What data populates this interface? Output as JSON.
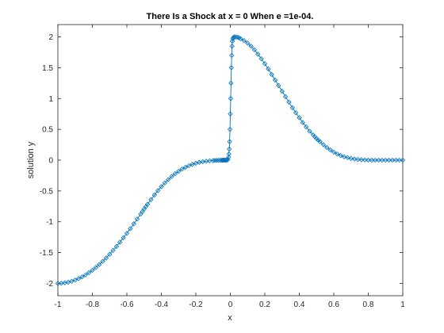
{
  "chart_data": {
    "type": "line",
    "title": "There Is a Shock at x = 0 When e =1e-04.",
    "xlabel": "x",
    "ylabel": "solution y",
    "xlim": [
      -1,
      1
    ],
    "ylim": [
      -2.2,
      2.2
    ],
    "xticks": [
      -1,
      -0.8,
      -0.6,
      -0.4,
      -0.2,
      0,
      0.2,
      0.4,
      0.6,
      0.8,
      1
    ],
    "xtick_labels": [
      "-1",
      "-0.8",
      "-0.6",
      "-0.4",
      "-0.2",
      "0",
      "0.2",
      "0.4",
      "0.6",
      "0.8",
      "1"
    ],
    "yticks": [
      -2,
      -1.5,
      -1,
      -0.5,
      0,
      0.5,
      1,
      1.5,
      2
    ],
    "ytick_labels": [
      "-2",
      "-1.5",
      "-1",
      "-0.5",
      "0",
      "0.5",
      "1",
      "1.5",
      "2"
    ],
    "grid": false,
    "legend": "none",
    "marker": "diamond",
    "line_color": "#0072BD",
    "series": [
      {
        "x": [
          -1.0,
          -0.98,
          -0.96,
          -0.94,
          -0.92,
          -0.9,
          -0.88,
          -0.86,
          -0.84,
          -0.82,
          -0.8,
          -0.78,
          -0.76,
          -0.74,
          -0.72,
          -0.7,
          -0.68,
          -0.66,
          -0.64,
          -0.62,
          -0.6,
          -0.58,
          -0.56,
          -0.54,
          -0.52,
          -0.51,
          -0.5,
          -0.49,
          -0.48,
          -0.46,
          -0.44,
          -0.42,
          -0.4,
          -0.38,
          -0.36,
          -0.34,
          -0.32,
          -0.3,
          -0.28,
          -0.26,
          -0.24,
          -0.22,
          -0.2,
          -0.18,
          -0.16,
          -0.14,
          -0.12,
          -0.1,
          -0.09,
          -0.08,
          -0.07,
          -0.06,
          -0.05,
          -0.045,
          -0.04,
          -0.035,
          -0.03,
          -0.025,
          -0.02,
          -0.015,
          -0.01,
          -0.008,
          -0.006,
          -0.004,
          -0.002,
          0.0,
          0.002,
          0.004,
          0.006,
          0.008,
          0.01,
          0.012,
          0.015,
          0.018,
          0.022,
          0.03,
          0.04,
          0.05,
          0.06,
          0.08,
          0.1,
          0.12,
          0.14,
          0.16,
          0.18,
          0.2,
          0.22,
          0.24,
          0.26,
          0.28,
          0.3,
          0.32,
          0.34,
          0.36,
          0.38,
          0.4,
          0.42,
          0.44,
          0.46,
          0.48,
          0.49,
          0.5,
          0.51,
          0.52,
          0.54,
          0.56,
          0.58,
          0.6,
          0.62,
          0.64,
          0.66,
          0.68,
          0.7,
          0.72,
          0.74,
          0.76,
          0.78,
          0.8,
          0.82,
          0.84,
          0.86,
          0.88,
          0.9,
          0.92,
          0.94,
          0.96,
          0.98,
          1.0
        ],
        "y": [
          -2.0,
          -1.998,
          -1.99,
          -1.98,
          -1.965,
          -1.946,
          -1.922,
          -1.894,
          -1.862,
          -1.826,
          -1.786,
          -1.742,
          -1.694,
          -1.642,
          -1.587,
          -1.528,
          -1.465,
          -1.4,
          -1.331,
          -1.26,
          -1.187,
          -1.111,
          -1.033,
          -0.955,
          -0.875,
          -0.835,
          -0.795,
          -0.755,
          -0.715,
          -0.64,
          -0.565,
          -0.495,
          -0.43,
          -0.37,
          -0.315,
          -0.265,
          -0.22,
          -0.18,
          -0.145,
          -0.115,
          -0.09,
          -0.068,
          -0.05,
          -0.036,
          -0.025,
          -0.017,
          -0.011,
          -0.007,
          -0.005,
          -0.004,
          -0.003,
          -0.002,
          -0.001,
          -0.001,
          0.0,
          0.0,
          0.0,
          0.0,
          0.0,
          0.01,
          0.05,
          0.1,
          0.18,
          0.3,
          0.5,
          0.75,
          1.0,
          1.25,
          1.5,
          1.7,
          1.85,
          1.93,
          1.97,
          1.99,
          2.0,
          2.0,
          1.995,
          1.985,
          1.97,
          1.94,
          1.9,
          1.85,
          1.79,
          1.72,
          1.645,
          1.565,
          1.48,
          1.39,
          1.3,
          1.21,
          1.12,
          1.03,
          0.94,
          0.85,
          0.77,
          0.69,
          0.61,
          0.54,
          0.47,
          0.41,
          0.38,
          0.35,
          0.325,
          0.3,
          0.25,
          0.205,
          0.165,
          0.13,
          0.1,
          0.075,
          0.055,
          0.04,
          0.028,
          0.018,
          0.011,
          0.006,
          0.003,
          0.001,
          0.0,
          0.0,
          0.0,
          0.0,
          0.0,
          0.0,
          0.0,
          0.0,
          0.0,
          0.0
        ]
      }
    ]
  }
}
